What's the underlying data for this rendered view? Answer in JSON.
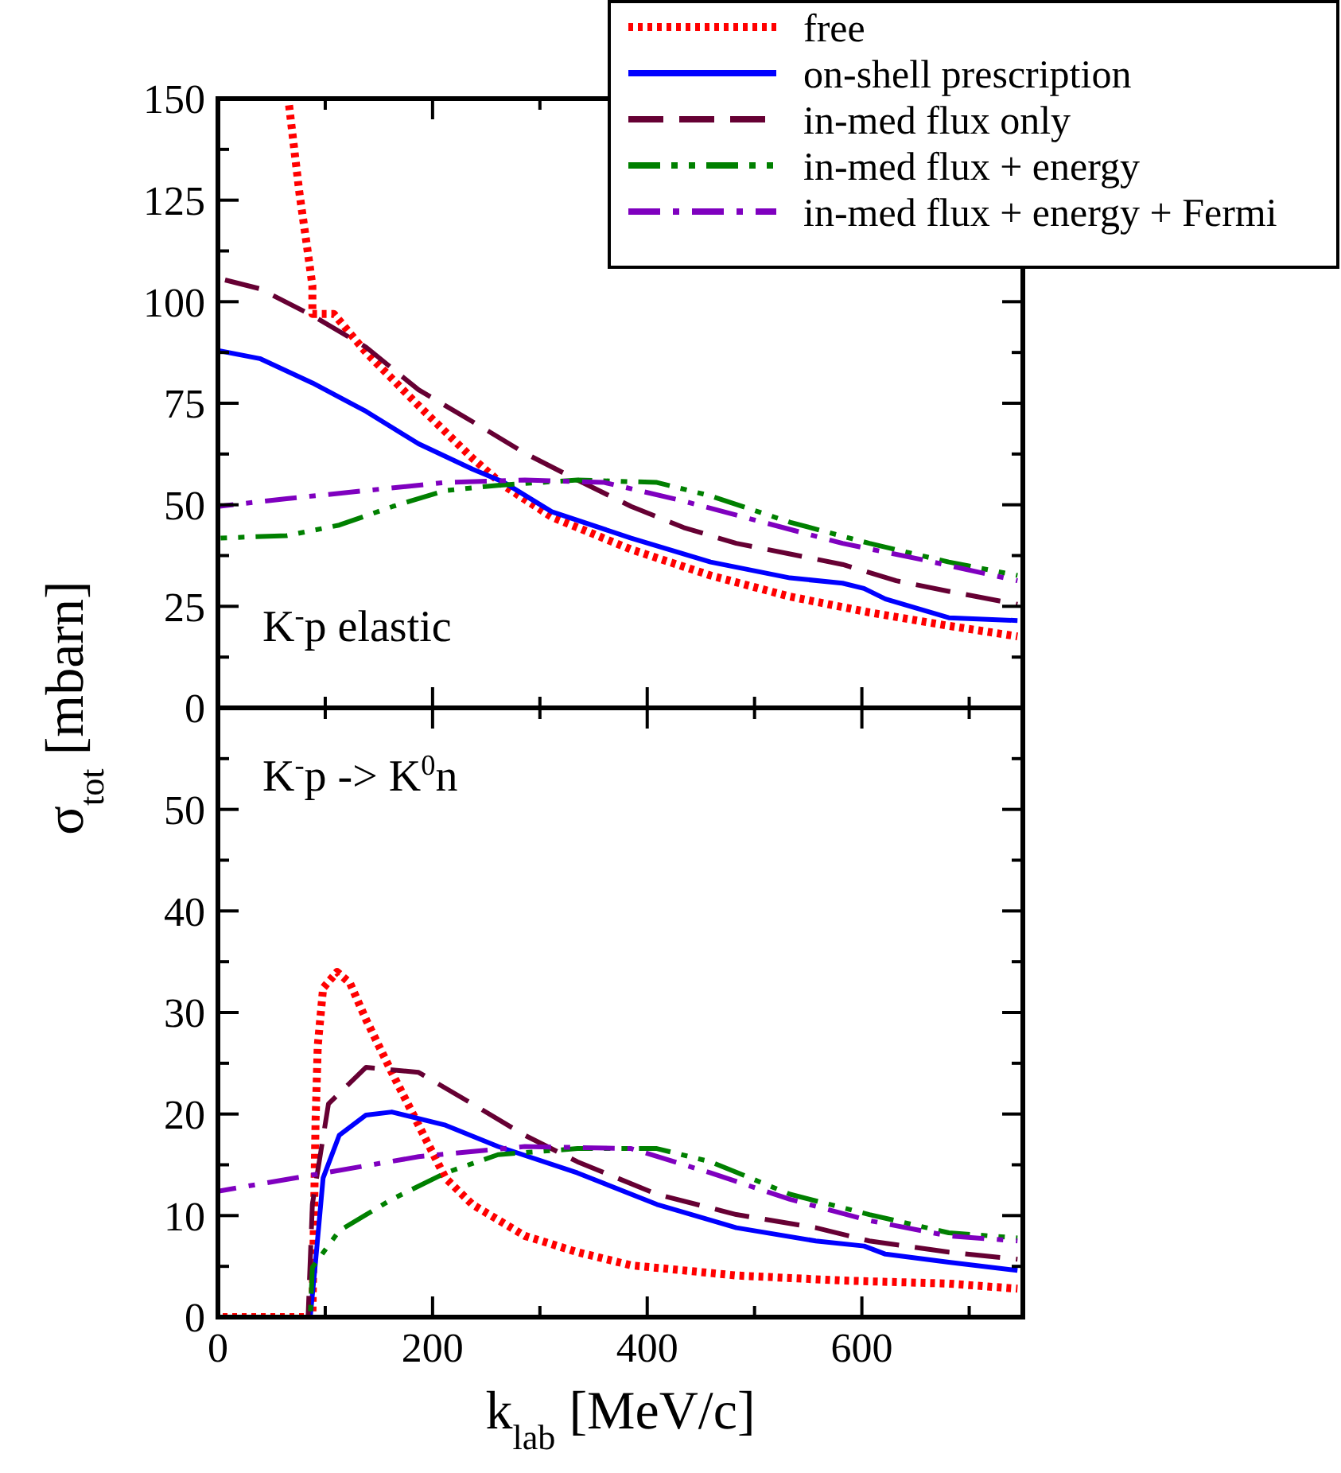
{
  "chart_data": [
    {
      "type": "line",
      "ylabel": "σ$_{tot}$ [mbarn]",
      "annotations": [
        "K$^{-}$p elastic"
      ],
      "legend": "top right",
      "tick_labels": "y",
      "marker": "none",
      "xlim": [
        0,
        750
      ],
      "xticks": [
        0,
        {
          "value": 100,
          "label": null
        },
        200,
        {
          "value": 300,
          "label": null
        },
        400,
        {
          "value": 500,
          "label": null
        },
        600,
        {
          "value": 700,
          "label": null
        }
      ],
      "ylim": [
        0,
        150
      ],
      "yticks": [
        0,
        {
          "value": 12.5,
          "label": null
        },
        25,
        {
          "value": 37.5,
          "label": null
        },
        50,
        {
          "value": 62.5,
          "label": null
        },
        75,
        {
          "value": 87.5,
          "label": null
        },
        100,
        {
          "value": 112.5,
          "label": null
        },
        125,
        {
          "value": 137.5,
          "label": null
        },
        150
      ],
      "series": [
        {
          "name": "free",
          "color": "#ff0000",
          "line_style": "dotted",
          "x": [
            66,
            76,
            83,
            88,
            88,
            108,
            138,
            187,
            237,
            266,
            311,
            385,
            459,
            533,
            607,
            681,
            745
          ],
          "values": [
            149,
            126.6,
            113.6,
            104,
            97,
            97,
            87.5,
            74.4,
            61.5,
            54.8,
            47,
            39,
            32.6,
            27.4,
            23.5,
            20.2,
            17.6
          ]
        },
        {
          "name": "on-shell prescription",
          "color": "#0000ff",
          "line_style": "solid",
          "x": [
            0,
            39,
            88,
            138,
            187,
            237,
            266,
            311,
            385,
            459,
            533,
            582,
            602,
            622,
            681,
            745
          ],
          "values": [
            88,
            86,
            80,
            73,
            65,
            58.8,
            55.6,
            48.3,
            41.8,
            35.9,
            32,
            30.7,
            29.4,
            26.8,
            22.2,
            21.5
          ]
        },
        {
          "name": "in-med flux only",
          "color": "#660033",
          "line_style": "dashed",
          "x": [
            0,
            39,
            88,
            138,
            187,
            237,
            286,
            335,
            385,
            434,
            483,
            533,
            582,
            632,
            681,
            745
          ],
          "values": [
            105.8,
            103.2,
            96.6,
            88.8,
            78.3,
            70.5,
            62.7,
            56.1,
            49.6,
            44.4,
            40.5,
            37.9,
            35.3,
            31.3,
            28.7,
            25.5
          ]
        },
        {
          "name": "in-med flux + energy",
          "color": "#008000",
          "line_style": "dashdotdot",
          "x": [
            0,
            64,
            113,
            163,
            212,
            261,
            335,
            409,
            459,
            533,
            607,
            681,
            745
          ],
          "values": [
            41.8,
            42.4,
            45,
            49.6,
            53.5,
            54.8,
            56.1,
            55.5,
            52.2,
            45.7,
            40.5,
            35.9,
            32.6
          ]
        },
        {
          "name": "in-med flux + energy + Fermi",
          "color": "#7f00bf",
          "line_style": "dashdot",
          "x": [
            0,
            64,
            138,
            212,
            286,
            360,
            434,
            508,
            582,
            656,
            745
          ],
          "values": [
            49.6,
            51.5,
            53.5,
            55.5,
            56.1,
            55.5,
            50.9,
            45.7,
            40.5,
            36.5,
            31.3
          ]
        }
      ]
    },
    {
      "type": "line",
      "xlabel": "k$_{lab}$ [MeV/c]",
      "annotations": [
        "K$^{-}$p -> K$^{0}$n"
      ],
      "marker": "none",
      "xlim": [
        0,
        750
      ],
      "xticks": [
        0,
        {
          "value": 100,
          "label": null
        },
        200,
        {
          "value": 300,
          "label": null
        },
        400,
        {
          "value": 500,
          "label": null
        },
        600,
        {
          "value": 700,
          "label": null
        }
      ],
      "ylim": [
        0,
        60
      ],
      "yticks": [
        0,
        {
          "value": 5,
          "label": null
        },
        10,
        {
          "value": 15,
          "label": null
        },
        20,
        {
          "value": 25,
          "label": null
        },
        30,
        {
          "value": 35,
          "label": null
        },
        40,
        {
          "value": 45,
          "label": null
        },
        50,
        {
          "value": 55,
          "label": null
        }
      ],
      "series": [
        {
          "color": "#ff0000",
          "line_style": "dotted",
          "x": [
            0,
            88,
            91,
            93,
            98,
            111,
            123,
            138,
            162,
            187,
            212,
            237,
            286,
            335,
            385,
            483,
            582,
            681,
            745
          ],
          "values": [
            0,
            0,
            19.4,
            26.7,
            32.4,
            34,
            32.9,
            29.3,
            24.1,
            18.9,
            13.7,
            11.1,
            8,
            6.4,
            5.1,
            4.1,
            3.6,
            3.3,
            2.8
          ]
        },
        {
          "color": "#0000ff",
          "line_style": "solid",
          "x": [
            86,
            91,
            98,
            113,
            138,
            162,
            212,
            261,
            335,
            409,
            483,
            557,
            602,
            622,
            681,
            745
          ],
          "values": [
            0,
            5.5,
            13.7,
            17.9,
            19.9,
            20.2,
            18.9,
            16.8,
            14.2,
            11.1,
            8.8,
            7.5,
            7,
            6.2,
            5.4,
            4.6
          ]
        },
        {
          "color": "#660033",
          "line_style": "dashed",
          "x": [
            84,
            88,
            103,
            138,
            187,
            237,
            286,
            335,
            409,
            483,
            557,
            607,
            681,
            745
          ],
          "values": [
            0,
            11.1,
            21,
            24.6,
            24.1,
            21,
            17.9,
            15.3,
            12.1,
            10.1,
            8.8,
            7.5,
            6.4,
            5.7
          ]
        },
        {
          "color": "#008000",
          "line_style": "dashdotdot",
          "x": [
            86,
            88,
            113,
            162,
            212,
            261,
            335,
            409,
            459,
            533,
            607,
            681,
            745
          ],
          "values": [
            0,
            4.9,
            8.5,
            11.6,
            14.2,
            16,
            16.6,
            16.6,
            15.3,
            12.1,
            10.1,
            8.3,
            7.8
          ]
        },
        {
          "color": "#7f00bf",
          "line_style": "dashdot",
          "x": [
            0,
            88,
            187,
            286,
            385,
            459,
            533,
            607,
            681,
            745
          ],
          "values": [
            12.4,
            14,
            15.8,
            16.8,
            16.6,
            14.2,
            11.6,
            9.5,
            8,
            7.5
          ]
        }
      ]
    }
  ]
}
